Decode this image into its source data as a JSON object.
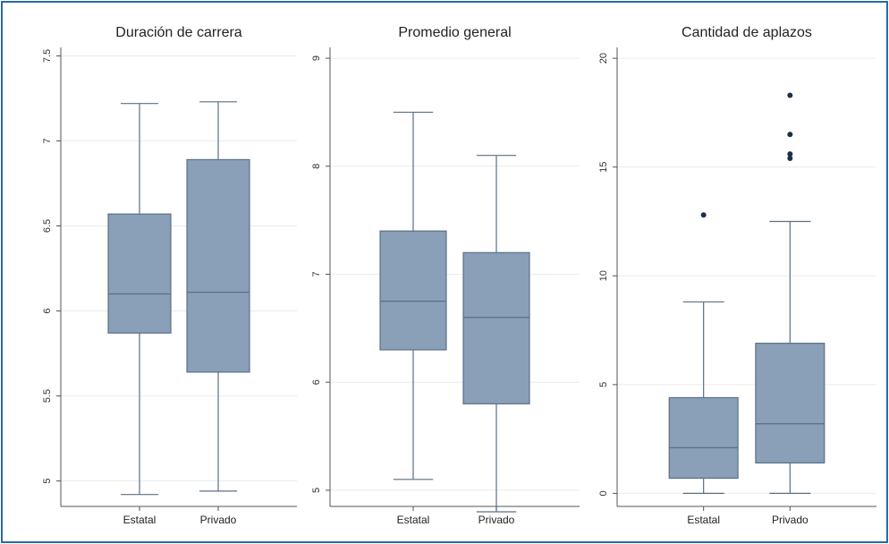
{
  "chart_data": [
    {
      "type": "box",
      "title": "Duración de carrera",
      "categories": [
        "Estatal",
        "Privado"
      ],
      "ylim": [
        4.85,
        7.55
      ],
      "yticks": [
        5,
        5.5,
        6,
        6.5,
        7,
        7.5
      ],
      "ytick_labels": [
        "5",
        "5.5",
        "6",
        "6.5",
        "7",
        "7.5"
      ],
      "grid": true,
      "boxes": [
        {
          "category": "Estatal",
          "min": 4.92,
          "q1": 5.87,
          "median": 6.1,
          "q3": 6.57,
          "max": 7.22,
          "outliers": []
        },
        {
          "category": "Privado",
          "min": 4.94,
          "q1": 5.64,
          "median": 6.11,
          "q3": 6.89,
          "max": 7.23,
          "outliers": []
        }
      ]
    },
    {
      "type": "box",
      "title": "Promedio general",
      "categories": [
        "Estatal",
        "Privado"
      ],
      "ylim": [
        4.85,
        9.1
      ],
      "yticks": [
        5,
        6,
        7,
        8,
        9
      ],
      "ytick_labels": [
        "5",
        "6",
        "7",
        "8",
        "9"
      ],
      "grid": true,
      "boxes": [
        {
          "category": "Estatal",
          "min": 5.1,
          "q1": 6.3,
          "median": 6.75,
          "q3": 7.4,
          "max": 8.5,
          "outliers": []
        },
        {
          "category": "Privado",
          "min": 4.8,
          "q1": 5.8,
          "median": 6.6,
          "q3": 7.2,
          "max": 8.1,
          "outliers": []
        }
      ]
    },
    {
      "type": "box",
      "title": "Cantidad de aplazos",
      "categories": [
        "Estatal",
        "Privado"
      ],
      "ylim": [
        -0.6,
        20.5
      ],
      "yticks": [
        0,
        5,
        10,
        15,
        20
      ],
      "ytick_labels": [
        "0",
        "5",
        "10",
        "15",
        "20"
      ],
      "grid": true,
      "boxes": [
        {
          "category": "Estatal",
          "min": 0,
          "q1": 0.7,
          "median": 2.1,
          "q3": 4.4,
          "max": 8.8,
          "outliers": [
            12.8
          ]
        },
        {
          "category": "Privado",
          "min": 0,
          "q1": 1.4,
          "median": 3.2,
          "q3": 6.9,
          "max": 12.5,
          "outliers": [
            15.4,
            15.6,
            16.5,
            18.3
          ]
        }
      ]
    }
  ],
  "colors": {
    "box_fill": "#8aa0b8",
    "box_stroke": "#5a6f86",
    "grid": "#ebebeb",
    "axis": "#555555",
    "outlier": "#1c2f4a",
    "border": "#2a6aa6"
  }
}
